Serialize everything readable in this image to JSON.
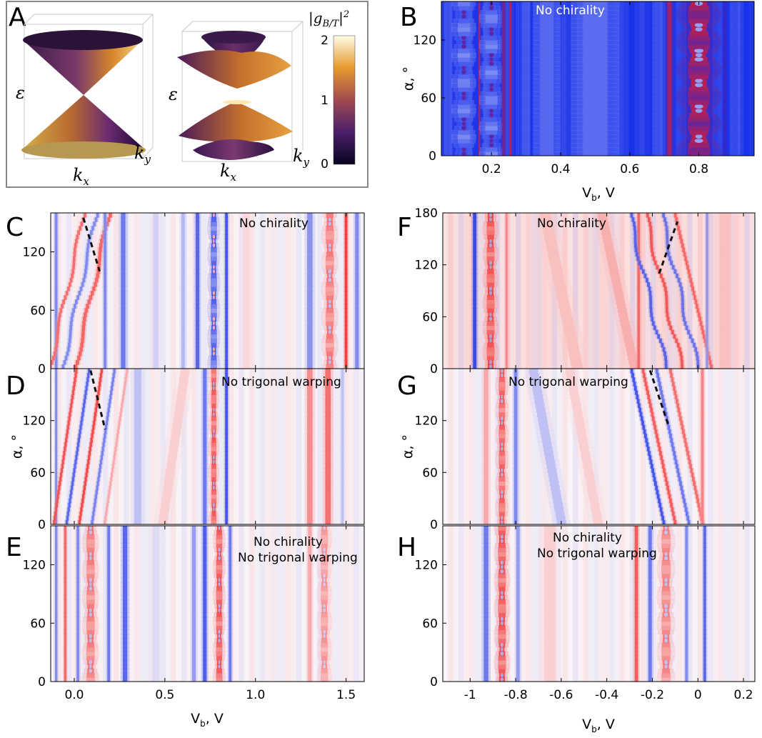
{
  "panel_a": {
    "letter": "A",
    "colorbar_label": "|g_B/T|^2",
    "colorbar_ticks": [
      "0",
      "1",
      "2"
    ],
    "epsilon_label": "ε",
    "kx_label": "k_x",
    "ky_label": "k_y"
  },
  "colors": {
    "blue": "#1030e8",
    "red": "#f01818",
    "panel_a_frame": "#888888",
    "cone_dark": "#1c0a3a",
    "cone_purple": "#5a2a7a",
    "cone_orange": "#e08a20",
    "cone_yellow": "#fff0c0"
  },
  "chart_data": [
    {
      "id": "B",
      "letter": "B",
      "type": "heatmap",
      "annotation": [
        "No chirality"
      ],
      "xlabel": "V_b, V",
      "ylabel": "α, °",
      "xlim": [
        0.055,
        0.96
      ],
      "ylim": [
        0,
        160
      ],
      "xticks": [
        {
          "v": 0.2,
          "t": "0.2"
        },
        {
          "v": 0.4,
          "t": "0.4"
        },
        {
          "v": 0.6,
          "t": "0.6"
        },
        {
          "v": 0.8,
          "t": "0.8"
        }
      ],
      "yticks": [
        {
          "v": 0,
          "t": "0"
        },
        {
          "v": 60,
          "t": "60"
        },
        {
          "v": 120,
          "t": "120"
        }
      ],
      "background": "blue",
      "bands": [
        {
          "c": 0.075,
          "w": 0.012,
          "s": -0.9
        },
        {
          "c": 0.12,
          "w": 0.03,
          "s": -0.9,
          "mod": "braid"
        },
        {
          "c": 0.165,
          "w": 0.004,
          "s": 0.9
        },
        {
          "c": 0.2,
          "w": 0.03,
          "s": -0.9,
          "mod": "braid"
        },
        {
          "c": 0.235,
          "w": 0.008,
          "s": 0.5
        },
        {
          "c": 0.255,
          "w": 0.004,
          "s": 1.0
        },
        {
          "c": 0.275,
          "w": 0.005,
          "s": -1.0
        },
        {
          "c": 0.3,
          "w": 0.012,
          "s": -0.85
        },
        {
          "c": 0.36,
          "w": 0.04,
          "s": -0.75
        },
        {
          "c": 0.5,
          "w": 0.07,
          "s": -0.72
        },
        {
          "c": 0.68,
          "w": 0.015,
          "s": -0.9
        },
        {
          "c": 0.715,
          "w": 0.012,
          "s": 0.75
        },
        {
          "c": 0.8,
          "w": 0.055,
          "s": 0.85,
          "mod": "braid"
        },
        {
          "c": 0.875,
          "w": 0.008,
          "s": 0.2
        },
        {
          "c": 0.905,
          "w": 0.015,
          "s": -0.95
        }
      ]
    },
    {
      "id": "C",
      "letter": "C",
      "type": "heatmap",
      "annotation": [
        "No chirality"
      ],
      "xlim": [
        -0.13,
        1.6
      ],
      "ylim": [
        0,
        160
      ],
      "yticks": [
        {
          "v": 0,
          "t": "0"
        },
        {
          "v": 60,
          "t": "60"
        },
        {
          "v": 120,
          "t": "120"
        }
      ],
      "bands": [
        {
          "c": -0.1,
          "w": 0.015,
          "s": -0.6
        },
        {
          "c": -0.04,
          "w": 0.015,
          "s": 0.7,
          "tilt": 0.0012,
          "osc": true
        },
        {
          "c": 0.03,
          "w": 0.015,
          "s": -0.6,
          "tilt": 0.0012,
          "osc": true
        },
        {
          "c": 0.1,
          "w": 0.018,
          "s": 0.75,
          "tilt": 0.0012,
          "osc": true
        },
        {
          "c": 0.17,
          "w": 0.015,
          "s": -0.6
        },
        {
          "c": 0.27,
          "w": 0.025,
          "s": -0.7
        },
        {
          "c": 0.45,
          "w": 0.03,
          "s": -0.2
        },
        {
          "c": 0.6,
          "w": 0.02,
          "s": -0.35
        },
        {
          "c": 0.68,
          "w": 0.02,
          "s": -0.8
        },
        {
          "c": 0.77,
          "w": 0.03,
          "s": -0.9,
          "mod": "braid"
        },
        {
          "c": 0.84,
          "w": 0.015,
          "s": -0.9
        },
        {
          "c": 0.95,
          "w": 0.04,
          "s": 0.15
        },
        {
          "c": 1.3,
          "w": 0.03,
          "s": -0.55
        },
        {
          "c": 1.41,
          "w": 0.04,
          "s": 0.7,
          "mod": "braid"
        },
        {
          "c": 1.5,
          "w": 0.015,
          "s": 0.95
        },
        {
          "c": 1.56,
          "w": 0.02,
          "s": -0.6
        }
      ],
      "dashed_line": {
        "x": [
          0.05,
          0.14
        ],
        "y": [
          155,
          100
        ]
      }
    },
    {
      "id": "D",
      "letter": "D",
      "type": "heatmap",
      "annotation": [
        "No trigonal warping"
      ],
      "xlim": [
        -0.13,
        1.6
      ],
      "ylim": [
        0,
        180
      ],
      "yticks": [
        {
          "v": 0,
          "t": "0"
        },
        {
          "v": 60,
          "t": "60"
        },
        {
          "v": 120,
          "t": "120"
        }
      ],
      "ylabel": "α, °",
      "bands": [
        {
          "c": -0.1,
          "w": 0.012,
          "s": -0.6
        },
        {
          "c": -0.05,
          "w": 0.013,
          "s": 0.85,
          "tilt": 0.0007
        },
        {
          "c": 0.02,
          "w": 0.013,
          "s": -0.8,
          "tilt": 0.0007
        },
        {
          "c": 0.09,
          "w": 0.013,
          "s": 0.9,
          "tilt": 0.0007
        },
        {
          "c": 0.16,
          "w": 0.013,
          "s": -0.65,
          "tilt": 0.0007
        },
        {
          "c": 0.23,
          "w": 0.012,
          "s": 0.4,
          "tilt": 0.0007
        },
        {
          "c": 0.35,
          "w": 0.04,
          "s": -0.3
        },
        {
          "c": 0.55,
          "w": 0.05,
          "s": 0.2,
          "tilt": 0.0007
        },
        {
          "c": 0.72,
          "w": 0.02,
          "s": -0.7
        },
        {
          "c": 0.77,
          "w": 0.025,
          "s": 0.9,
          "mod": "braid"
        },
        {
          "c": 0.84,
          "w": 0.015,
          "s": -0.9
        },
        {
          "c": 1.3,
          "w": 0.03,
          "s": 0.55
        },
        {
          "c": 1.4,
          "w": 0.03,
          "s": 0.7
        },
        {
          "c": 1.48,
          "w": 0.015,
          "s": -0.3
        }
      ],
      "dashed_line": {
        "x": [
          0.09,
          0.17
        ],
        "y": [
          178,
          110
        ]
      }
    },
    {
      "id": "E",
      "letter": "E",
      "type": "heatmap",
      "annotation": [
        "No chirality",
        "No trigonal warping"
      ],
      "xlabel": "V_b, V",
      "xlim": [
        -0.13,
        1.6
      ],
      "ylim": [
        0,
        160
      ],
      "xticks": [
        {
          "v": 0,
          "t": "0.0"
        },
        {
          "v": 0.5,
          "t": "0.5"
        },
        {
          "v": 1,
          "t": "1.0"
        },
        {
          "v": 1.5,
          "t": "1.5"
        }
      ],
      "yticks": [
        {
          "v": 0,
          "t": "0"
        },
        {
          "v": 60,
          "t": "60"
        },
        {
          "v": 120,
          "t": "120"
        }
      ],
      "bands": [
        {
          "c": -0.1,
          "w": 0.013,
          "s": -0.6
        },
        {
          "c": -0.05,
          "w": 0.013,
          "s": 0.75
        },
        {
          "c": 0.02,
          "w": 0.015,
          "s": -0.6
        },
        {
          "c": 0.09,
          "w": 0.04,
          "s": 0.7,
          "mod": "braid"
        },
        {
          "c": 0.19,
          "w": 0.015,
          "s": -0.7
        },
        {
          "c": 0.28,
          "w": 0.025,
          "s": -0.8
        },
        {
          "c": 0.45,
          "w": 0.04,
          "s": -0.15
        },
        {
          "c": 0.66,
          "w": 0.02,
          "s": -0.5
        },
        {
          "c": 0.72,
          "w": 0.02,
          "s": -0.85
        },
        {
          "c": 0.8,
          "w": 0.03,
          "s": 0.9,
          "mod": "braid"
        },
        {
          "c": 0.86,
          "w": 0.015,
          "s": -0.7
        },
        {
          "c": 1.3,
          "w": 0.02,
          "s": 0.4
        },
        {
          "c": 1.38,
          "w": 0.035,
          "s": 0.55,
          "mod": "braid"
        }
      ]
    },
    {
      "id": "F",
      "letter": "F",
      "type": "heatmap",
      "annotation": [
        "No chirality"
      ],
      "xlim": [
        -1.12,
        0.25
      ],
      "ylim": [
        0,
        180
      ],
      "yticks": [
        {
          "v": 0,
          "t": "0"
        },
        {
          "v": 60,
          "t": "60"
        },
        {
          "v": 120,
          "t": "120"
        },
        {
          "v": 180,
          "t": "180"
        }
      ],
      "background": "pink",
      "bands": [
        {
          "c": -0.98,
          "w": 0.015,
          "s": -0.95
        },
        {
          "c": -0.91,
          "w": 0.03,
          "s": 0.9,
          "mod": "braid"
        },
        {
          "c": -0.84,
          "w": 0.01,
          "s": 0.5
        },
        {
          "c": -0.6,
          "w": 0.05,
          "s": 0.2,
          "tilt": -0.0008
        },
        {
          "c": -0.35,
          "w": 0.04,
          "s": 0.3,
          "tilt": -0.0008
        },
        {
          "c": -0.26,
          "w": 0.012,
          "s": 0.7
        },
        {
          "c": -0.22,
          "w": 0.012,
          "s": -0.8,
          "tilt": -0.0009,
          "osc": true
        },
        {
          "c": -0.15,
          "w": 0.012,
          "s": 0.8,
          "tilt": -0.0009,
          "osc": true
        },
        {
          "c": -0.08,
          "w": 0.012,
          "s": -0.7,
          "tilt": -0.0009,
          "osc": true
        },
        {
          "c": -0.02,
          "w": 0.012,
          "s": 0.7,
          "tilt": -0.0009
        },
        {
          "c": 0.04,
          "w": 0.01,
          "s": -0.5
        },
        {
          "c": 0.12,
          "w": 0.05,
          "s": 0.2
        }
      ],
      "dashed_line": {
        "x": [
          -0.17,
          -0.09
        ],
        "y": [
          110,
          170
        ]
      }
    },
    {
      "id": "G",
      "letter": "G",
      "type": "heatmap",
      "annotation": [
        "No trigonal warping"
      ],
      "xlim": [
        -1.12,
        0.25
      ],
      "ylim": [
        0,
        180
      ],
      "yticks": [
        {
          "v": 0,
          "t": "0"
        },
        {
          "v": 60,
          "t": "60"
        },
        {
          "v": 120,
          "t": "120"
        }
      ],
      "ylabel": "α, °",
      "bands": [
        {
          "c": -0.93,
          "w": 0.02,
          "s": 0.4
        },
        {
          "c": -0.86,
          "w": 0.025,
          "s": 0.85,
          "mod": "braid"
        },
        {
          "c": -0.8,
          "w": 0.015,
          "s": -0.6
        },
        {
          "c": -0.66,
          "w": 0.04,
          "s": -0.3,
          "tilt": -0.0007
        },
        {
          "c": -0.5,
          "w": 0.04,
          "s": 0.2,
          "tilt": -0.0007
        },
        {
          "c": -0.22,
          "w": 0.012,
          "s": -0.9,
          "tilt": -0.0008
        },
        {
          "c": -0.17,
          "w": 0.012,
          "s": 0.8,
          "tilt": -0.0008
        },
        {
          "c": -0.11,
          "w": 0.012,
          "s": -0.7,
          "tilt": -0.0008
        },
        {
          "c": -0.05,
          "w": 0.012,
          "s": 0.7,
          "tilt": -0.0008
        },
        {
          "c": 0.02,
          "w": 0.012,
          "s": 0.6
        }
      ],
      "dashed_line": {
        "x": [
          -0.21,
          -0.13
        ],
        "y": [
          178,
          115
        ]
      }
    },
    {
      "id": "H",
      "letter": "H",
      "type": "heatmap",
      "annotation": [
        "No chirality",
        "No trigonal warping"
      ],
      "xlabel": "V_b, V",
      "xlim": [
        -1.12,
        0.25
      ],
      "ylim": [
        0,
        160
      ],
      "xticks": [
        {
          "v": -1,
          "t": "-1"
        },
        {
          "v": -0.8,
          "t": "-0.8"
        },
        {
          "v": -0.6,
          "t": "-0.6"
        },
        {
          "v": -0.4,
          "t": "-0.4"
        },
        {
          "v": -0.2,
          "t": "-0.2"
        },
        {
          "v": 0,
          "t": "0"
        },
        {
          "v": 0.2,
          "t": "0.2"
        }
      ],
      "yticks": [
        {
          "v": 0,
          "t": "0"
        },
        {
          "v": 60,
          "t": "60"
        },
        {
          "v": 120,
          "t": "120"
        }
      ],
      "bands": [
        {
          "c": -0.93,
          "w": 0.02,
          "s": -0.7
        },
        {
          "c": -0.86,
          "w": 0.03,
          "s": 0.9,
          "mod": "braid"
        },
        {
          "c": -0.79,
          "w": 0.015,
          "s": -0.5
        },
        {
          "c": -0.65,
          "w": 0.05,
          "s": 0.2
        },
        {
          "c": -0.27,
          "w": 0.015,
          "s": 0.8
        },
        {
          "c": -0.21,
          "w": 0.015,
          "s": -0.7
        },
        {
          "c": -0.14,
          "w": 0.035,
          "s": 0.65,
          "mod": "braid"
        },
        {
          "c": -0.05,
          "w": 0.012,
          "s": -0.6
        },
        {
          "c": 0.03,
          "w": 0.012,
          "s": -0.8
        }
      ]
    }
  ]
}
